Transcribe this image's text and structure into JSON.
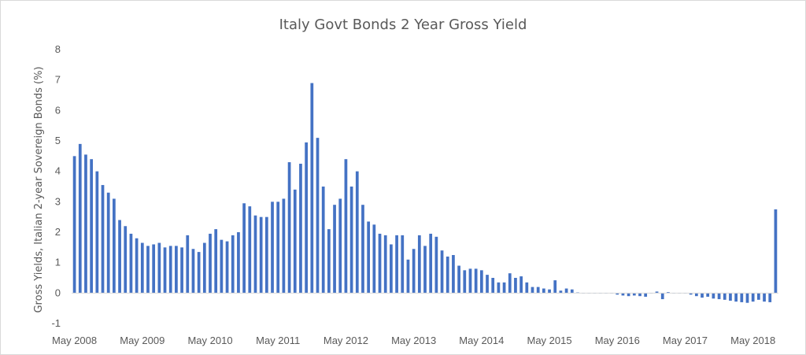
{
  "chart_data": {
    "type": "bar",
    "title": "Italy Govt Bonds 2 Year Gross Yield",
    "xlabel": "",
    "ylabel": "Gross Yields, Italian 2-year Sovereign Bonds (%)",
    "ylim": [
      -1,
      8
    ],
    "yticks": [
      "-1",
      "0",
      "1",
      "2",
      "3",
      "4",
      "5",
      "6",
      "7",
      "8"
    ],
    "xtick_labels": [
      "May 2008",
      "May 2009",
      "May 2010",
      "May 2011",
      "May 2012",
      "May 2013",
      "May 2014",
      "May 2015",
      "May 2016",
      "May 2017",
      "May 2018"
    ],
    "grid": false,
    "legend": "none",
    "bar_color": "#4472c4",
    "series": [
      {
        "values": [
          4.5,
          4.9,
          4.55,
          4.4,
          4.0,
          3.55,
          3.3,
          3.1,
          2.4,
          2.2,
          1.95,
          1.8,
          1.65,
          1.55,
          1.6,
          1.65,
          1.5,
          1.55,
          1.55,
          1.5,
          1.9,
          1.45,
          1.35,
          1.65,
          1.95,
          2.1,
          1.75,
          1.7,
          1.9,
          2.0,
          2.95,
          2.85,
          2.55,
          2.5,
          2.5,
          3.0,
          3.0,
          3.1,
          4.3,
          3.4,
          4.25,
          4.95,
          6.9,
          5.1,
          3.5,
          2.1,
          2.9,
          3.1,
          4.4,
          3.5,
          4.0,
          2.9,
          2.35,
          2.25,
          1.95,
          1.9,
          1.6,
          1.9,
          1.9,
          1.1,
          1.45,
          1.9,
          1.55,
          1.95,
          1.85,
          1.4,
          1.2,
          1.25,
          0.9,
          0.75,
          0.8,
          0.8,
          0.75,
          0.6,
          0.5,
          0.35,
          0.35,
          0.65,
          0.5,
          0.55,
          0.35,
          0.2,
          0.2,
          0.15,
          0.12,
          0.42,
          0.08,
          0.15,
          0.12,
          0.02,
          0.0,
          0.0,
          0.0,
          0.0,
          0.0,
          0.0,
          -0.05,
          -0.08,
          -0.1,
          -0.08,
          -0.1,
          -0.12,
          0.0,
          0.05,
          -0.2,
          0.03,
          0.0,
          0.0,
          0.0,
          -0.05,
          -0.1,
          -0.15,
          -0.12,
          -0.18,
          -0.2,
          -0.22,
          -0.25,
          -0.28,
          -0.3,
          -0.32,
          -0.28,
          -0.22,
          -0.28,
          -0.3,
          2.75
        ]
      }
    ]
  }
}
